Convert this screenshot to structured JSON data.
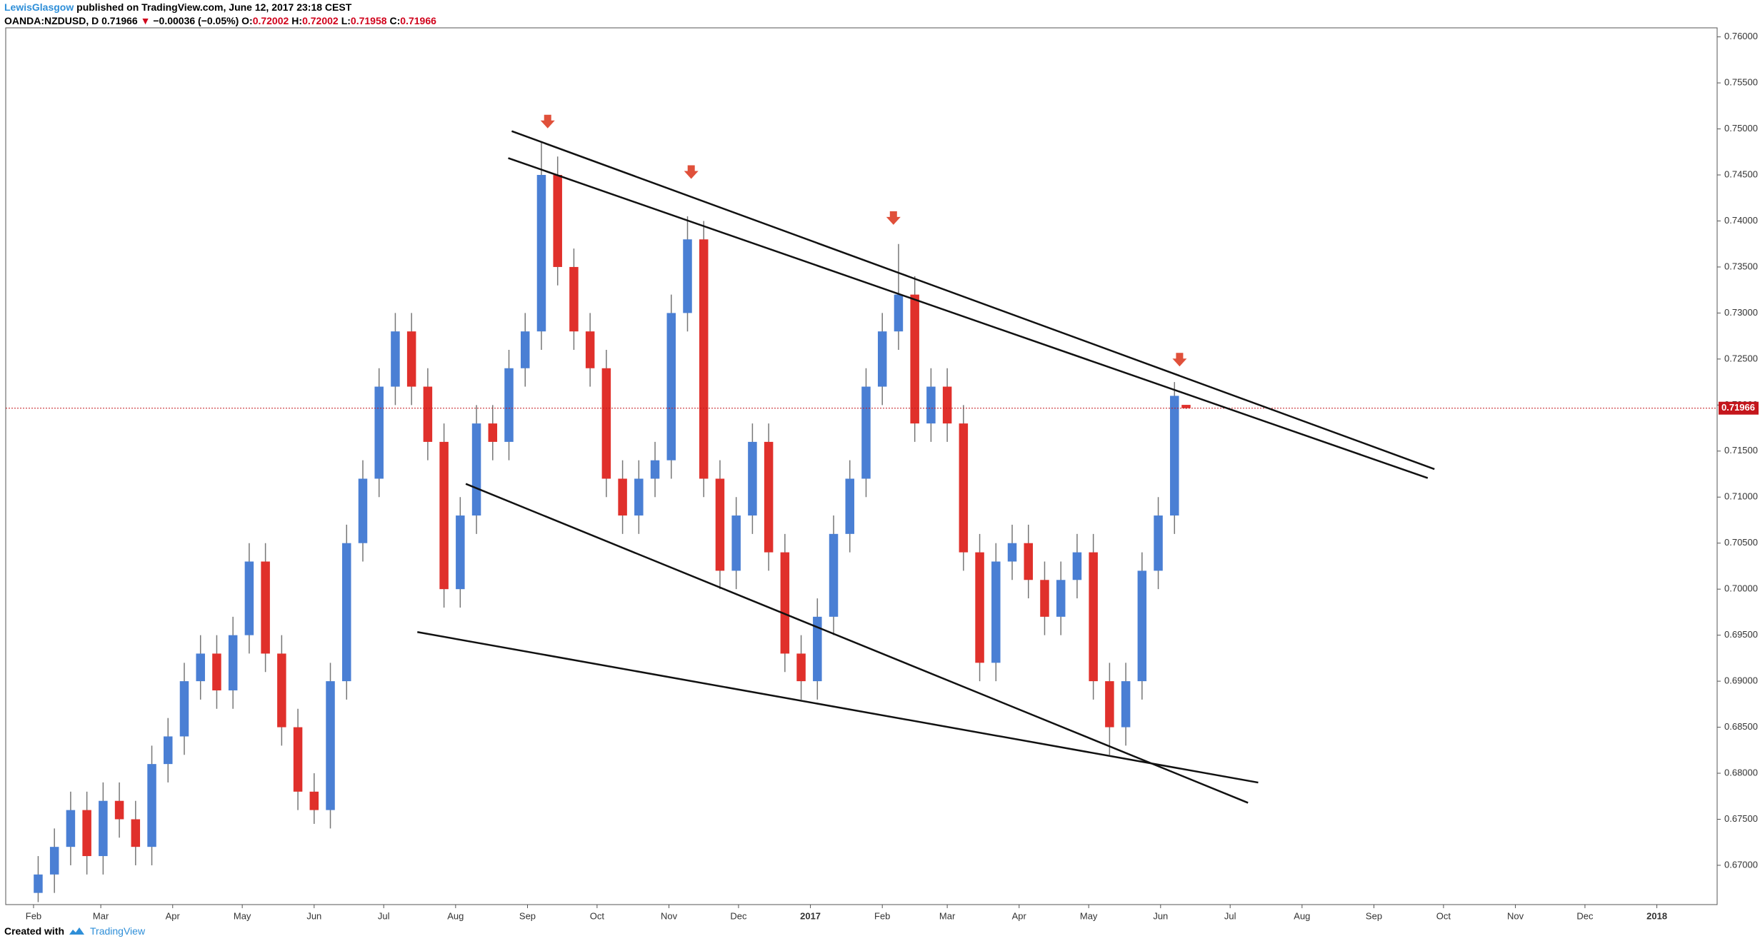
{
  "header": {
    "author": "LewisGlasgow",
    "published": "published on TradingView.com, June 12, 2017 23:18 CEST",
    "symbol": "OANDA:NZDUSD, D",
    "last": "0.71966",
    "arrow": "▼",
    "change": "−0.00036 (−0.05%)",
    "ohlc": [
      {
        "label": "O:",
        "value": "0.72002"
      },
      {
        "label": "H:",
        "value": "0.72002"
      },
      {
        "label": "L:",
        "value": "0.71958"
      },
      {
        "label": "C:",
        "value": "0.71966"
      }
    ]
  },
  "footer": {
    "created": "Created with",
    "brand": "TradingView"
  },
  "chart_data": {
    "type": "candlestick",
    "up_color": "#4a7fd4",
    "down_color": "#e0302b",
    "wick_color": "#777777",
    "xlim": [
      19,
      757
    ],
    "ylim": [
      0.66573,
      0.76098
    ],
    "xticks": [
      {
        "value": 31,
        "label": "Feb"
      },
      {
        "value": 60,
        "label": "Mar"
      },
      {
        "value": 91,
        "label": "Apr"
      },
      {
        "value": 121,
        "label": "May"
      },
      {
        "value": 152,
        "label": "Jun"
      },
      {
        "value": 182,
        "label": "Jul"
      },
      {
        "value": 213,
        "label": "Aug"
      },
      {
        "value": 244,
        "label": "Sep"
      },
      {
        "value": 274,
        "label": "Oct"
      },
      {
        "value": 305,
        "label": "Nov"
      },
      {
        "value": 335,
        "label": "Dec"
      },
      {
        "value": 366,
        "label": "2017"
      },
      {
        "value": 397,
        "label": "Feb"
      },
      {
        "value": 425,
        "label": "Mar"
      },
      {
        "value": 456,
        "label": "Apr"
      },
      {
        "value": 486,
        "label": "May"
      },
      {
        "value": 517,
        "label": "Jun"
      },
      {
        "value": 547,
        "label": "Jul"
      },
      {
        "value": 578,
        "label": "Aug"
      },
      {
        "value": 609,
        "label": "Sep"
      },
      {
        "value": 639,
        "label": "Oct"
      },
      {
        "value": 670,
        "label": "Nov"
      },
      {
        "value": 700,
        "label": "Dec"
      },
      {
        "value": 731,
        "label": "2018"
      }
    ],
    "yticks": [
      {
        "value": 0.67,
        "label": "0.67000"
      },
      {
        "value": 0.675,
        "label": "0.67500"
      },
      {
        "value": 0.68,
        "label": "0.68000"
      },
      {
        "value": 0.685,
        "label": "0.68500"
      },
      {
        "value": 0.69,
        "label": "0.69000"
      },
      {
        "value": 0.695,
        "label": "0.69500"
      },
      {
        "value": 0.7,
        "label": "0.70000"
      },
      {
        "value": 0.705,
        "label": "0.70500"
      },
      {
        "value": 0.71,
        "label": "0.71000"
      },
      {
        "value": 0.715,
        "label": "0.71500"
      },
      {
        "value": 0.72,
        "label": "0.72000"
      },
      {
        "value": 0.725,
        "label": "0.72500"
      },
      {
        "value": 0.73,
        "label": "0.73000"
      },
      {
        "value": 0.735,
        "label": "0.73500"
      },
      {
        "value": 0.74,
        "label": "0.74000"
      },
      {
        "value": 0.745,
        "label": "0.74500"
      },
      {
        "value": 0.75,
        "label": "0.75000"
      },
      {
        "value": 0.755,
        "label": "0.75500"
      },
      {
        "value": 0.76,
        "label": "0.76000"
      }
    ],
    "last_price": 0.71966,
    "last_price_color": "#c4161c",
    "x": [
      33,
      40,
      47,
      54,
      61,
      68,
      75,
      82,
      89,
      96,
      103,
      110,
      117,
      124,
      131,
      138,
      145,
      152,
      159,
      166,
      173,
      180,
      187,
      194,
      201,
      208,
      215,
      222,
      229,
      236,
      243,
      250,
      257,
      264,
      271,
      278,
      285,
      292,
      299,
      306,
      313,
      320,
      327,
      334,
      341,
      348,
      355,
      362,
      369,
      376,
      383,
      390,
      397,
      404,
      411,
      418,
      425,
      432,
      439,
      446,
      453,
      460,
      467,
      474,
      481,
      488,
      495,
      502,
      509,
      516,
      523,
      528
    ],
    "open": [
      0.667,
      0.669,
      0.672,
      0.676,
      0.671,
      0.677,
      0.675,
      0.672,
      0.681,
      0.684,
      0.69,
      0.693,
      0.689,
      0.695,
      0.703,
      0.693,
      0.685,
      0.678,
      0.676,
      0.69,
      0.705,
      0.712,
      0.722,
      0.728,
      0.722,
      0.716,
      0.7,
      0.708,
      0.718,
      0.716,
      0.724,
      0.728,
      0.745,
      0.735,
      0.728,
      0.724,
      0.712,
      0.708,
      0.712,
      0.714,
      0.73,
      0.738,
      0.712,
      0.702,
      0.708,
      0.716,
      0.704,
      0.693,
      0.69,
      0.697,
      0.706,
      0.712,
      0.722,
      0.728,
      0.732,
      0.718,
      0.722,
      0.718,
      0.704,
      0.692,
      0.703,
      0.705,
      0.701,
      0.697,
      0.701,
      0.704,
      0.69,
      0.685,
      0.69,
      0.702,
      0.708,
      0.72002
    ],
    "high": [
      0.671,
      0.674,
      0.678,
      0.678,
      0.679,
      0.679,
      0.677,
      0.683,
      0.686,
      0.692,
      0.695,
      0.695,
      0.697,
      0.705,
      0.705,
      0.695,
      0.687,
      0.68,
      0.692,
      0.707,
      0.714,
      0.724,
      0.73,
      0.73,
      0.724,
      0.718,
      0.71,
      0.72,
      0.72,
      0.726,
      0.73,
      0.7485,
      0.747,
      0.737,
      0.73,
      0.726,
      0.714,
      0.714,
      0.716,
      0.732,
      0.7405,
      0.74,
      0.714,
      0.71,
      0.718,
      0.718,
      0.706,
      0.695,
      0.699,
      0.708,
      0.714,
      0.724,
      0.73,
      0.7375,
      0.734,
      0.724,
      0.724,
      0.72,
      0.706,
      0.705,
      0.707,
      0.707,
      0.703,
      0.703,
      0.706,
      0.706,
      0.692,
      0.692,
      0.704,
      0.71,
      0.7225,
      0.72002
    ],
    "low": [
      0.666,
      0.667,
      0.67,
      0.669,
      0.669,
      0.673,
      0.67,
      0.67,
      0.679,
      0.682,
      0.688,
      0.687,
      0.687,
      0.693,
      0.691,
      0.683,
      0.676,
      0.6745,
      0.674,
      0.688,
      0.703,
      0.71,
      0.72,
      0.72,
      0.714,
      0.698,
      0.698,
      0.706,
      0.714,
      0.714,
      0.722,
      0.726,
      0.733,
      0.726,
      0.722,
      0.71,
      0.706,
      0.706,
      0.71,
      0.712,
      0.728,
      0.71,
      0.7,
      0.7,
      0.706,
      0.702,
      0.691,
      0.688,
      0.688,
      0.695,
      0.704,
      0.71,
      0.72,
      0.726,
      0.716,
      0.716,
      0.716,
      0.702,
      0.69,
      0.69,
      0.701,
      0.699,
      0.695,
      0.695,
      0.699,
      0.688,
      0.682,
      0.683,
      0.688,
      0.7,
      0.706,
      0.71958
    ],
    "close": [
      0.669,
      0.672,
      0.676,
      0.671,
      0.677,
      0.675,
      0.672,
      0.681,
      0.684,
      0.69,
      0.693,
      0.689,
      0.695,
      0.703,
      0.693,
      0.685,
      0.678,
      0.676,
      0.69,
      0.705,
      0.712,
      0.722,
      0.728,
      0.722,
      0.716,
      0.7,
      0.708,
      0.718,
      0.716,
      0.724,
      0.728,
      0.745,
      0.735,
      0.728,
      0.724,
      0.712,
      0.708,
      0.712,
      0.714,
      0.73,
      0.738,
      0.712,
      0.702,
      0.708,
      0.716,
      0.704,
      0.693,
      0.69,
      0.697,
      0.706,
      0.712,
      0.722,
      0.728,
      0.732,
      0.718,
      0.722,
      0.718,
      0.704,
      0.692,
      0.703,
      0.705,
      0.701,
      0.697,
      0.701,
      0.704,
      0.69,
      0.685,
      0.69,
      0.702,
      0.708,
      0.721,
      0.71966
    ],
    "trend_lines": [
      {
        "x": [
          237.2,
          635.1
        ],
        "y": [
          0.74976,
          0.71304
        ]
      },
      {
        "x": [
          235.7,
          632.2
        ],
        "y": [
          0.74683,
          0.71207
        ]
      },
      {
        "x": [
          217.4,
          554.7
        ],
        "y": [
          0.71144,
          0.67679
        ]
      },
      {
        "x": [
          196.5,
          559.1
        ],
        "y": [
          0.69534,
          0.67899
        ]
      }
    ],
    "arrow_markers": {
      "x": [
        252.7,
        314.6,
        401.8,
        525.2
      ],
      "y": [
        0.75061,
        0.74512,
        0.74012,
        0.72474
      ],
      "color": "#e0503a"
    }
  }
}
